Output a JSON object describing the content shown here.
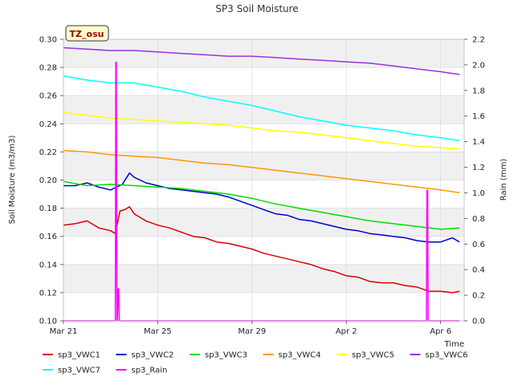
{
  "chart_data": {
    "type": "line",
    "title": "SP3 Soil Moisture",
    "xlabel": "Time",
    "ylabel": "Soil Moisture (m3/m3)",
    "y2label": "Rain (mm)",
    "badge": "TZ_osu",
    "xlim": [
      0,
      17.0
    ],
    "ylim": [
      0.1,
      0.3
    ],
    "y2lim": [
      0.0,
      2.2
    ],
    "x_ticks": [
      {
        "x": 0,
        "label": "Mar 21"
      },
      {
        "x": 4,
        "label": "Mar 25"
      },
      {
        "x": 8,
        "label": "Mar 29"
      },
      {
        "x": 12,
        "label": "Apr 2"
      },
      {
        "x": 16,
        "label": "Apr 6"
      }
    ],
    "y_ticks": [
      "0.10",
      "0.12",
      "0.14",
      "0.16",
      "0.18",
      "0.20",
      "0.22",
      "0.24",
      "0.26",
      "0.28",
      "0.30"
    ],
    "y2_ticks": [
      "0.0",
      "0.2",
      "0.4",
      "0.6",
      "0.8",
      "1.0",
      "1.2",
      "1.4",
      "1.6",
      "1.8",
      "2.0",
      "2.2"
    ],
    "grid": true,
    "legend_position": "bottom",
    "series": [
      {
        "name": "sp3_VWC1",
        "color": "#dd0000",
        "axis": "left",
        "x": [
          0,
          0.5,
          1,
          1.5,
          2,
          2.2,
          2.4,
          2.6,
          2.8,
          3,
          3.5,
          4,
          4.5,
          5,
          5.5,
          6,
          6.5,
          7,
          7.5,
          8,
          8.5,
          9,
          9.5,
          10,
          10.5,
          11,
          11.5,
          12,
          12.5,
          13,
          13.5,
          14,
          14.5,
          15,
          15.5,
          16,
          16.5,
          16.8
        ],
        "y": [
          0.168,
          0.169,
          0.171,
          0.166,
          0.164,
          0.162,
          0.178,
          0.179,
          0.181,
          0.176,
          0.171,
          0.168,
          0.166,
          0.163,
          0.16,
          0.159,
          0.156,
          0.155,
          0.153,
          0.151,
          0.148,
          0.146,
          0.144,
          0.142,
          0.14,
          0.137,
          0.135,
          0.132,
          0.131,
          0.128,
          0.127,
          0.127,
          0.125,
          0.124,
          0.121,
          0.121,
          0.12,
          0.121
        ]
      },
      {
        "name": "sp3_VWC2",
        "color": "#0000cc",
        "axis": "left",
        "x": [
          0,
          0.5,
          1,
          1.5,
          2,
          2.5,
          2.8,
          3,
          3.5,
          4,
          4.5,
          5,
          5.5,
          6,
          6.5,
          7,
          7.5,
          8,
          8.5,
          9,
          9.5,
          10,
          10.5,
          11,
          11.5,
          12,
          12.5,
          13,
          13.5,
          14,
          14.5,
          15,
          15.5,
          16,
          16.5,
          16.8
        ],
        "y": [
          0.196,
          0.196,
          0.198,
          0.195,
          0.193,
          0.197,
          0.205,
          0.202,
          0.198,
          0.196,
          0.194,
          0.193,
          0.192,
          0.191,
          0.19,
          0.188,
          0.185,
          0.182,
          0.179,
          0.176,
          0.175,
          0.172,
          0.171,
          0.169,
          0.167,
          0.165,
          0.164,
          0.162,
          0.161,
          0.16,
          0.159,
          0.157,
          0.156,
          0.156,
          0.159,
          0.156
        ]
      },
      {
        "name": "sp3_VWC3",
        "color": "#00dd00",
        "axis": "left",
        "x": [
          0,
          1,
          2,
          3,
          4,
          5,
          6,
          7,
          8,
          9,
          10,
          11,
          12,
          13,
          14,
          15,
          16,
          16.8
        ],
        "y": [
          0.199,
          0.196,
          0.197,
          0.196,
          0.195,
          0.194,
          0.192,
          0.19,
          0.187,
          0.183,
          0.18,
          0.177,
          0.174,
          0.171,
          0.169,
          0.167,
          0.165,
          0.166
        ]
      },
      {
        "name": "sp3_VWC4",
        "color": "#ff9900",
        "axis": "left",
        "x": [
          0,
          1,
          2,
          3,
          4,
          5,
          6,
          7,
          8,
          9,
          10,
          11,
          12,
          13,
          14,
          15,
          16,
          16.8
        ],
        "y": [
          0.221,
          0.22,
          0.218,
          0.217,
          0.216,
          0.214,
          0.212,
          0.211,
          0.209,
          0.207,
          0.205,
          0.203,
          0.201,
          0.199,
          0.197,
          0.195,
          0.193,
          0.191
        ]
      },
      {
        "name": "sp3_VWC5",
        "color": "#ffff00",
        "axis": "left",
        "x": [
          0,
          1,
          2,
          3,
          4,
          5,
          6,
          7,
          8,
          9,
          10,
          11,
          12,
          13,
          14,
          15,
          16,
          16.8
        ],
        "y": [
          0.248,
          0.246,
          0.244,
          0.243,
          0.242,
          0.241,
          0.24,
          0.239,
          0.237,
          0.235,
          0.234,
          0.232,
          0.23,
          0.228,
          0.226,
          0.224,
          0.223,
          0.222
        ]
      },
      {
        "name": "sp3_VWC6",
        "color": "#9933dd",
        "axis": "left",
        "x": [
          0,
          1,
          2,
          3,
          4,
          5,
          6,
          7,
          8,
          9,
          10,
          11,
          12,
          13,
          14,
          15,
          16,
          16.8
        ],
        "y": [
          0.294,
          0.293,
          0.292,
          0.292,
          0.291,
          0.29,
          0.289,
          0.288,
          0.288,
          0.287,
          0.286,
          0.285,
          0.284,
          0.283,
          0.281,
          0.279,
          0.277,
          0.275
        ]
      },
      {
        "name": "sp3_VWC7",
        "color": "#00ffff",
        "axis": "left",
        "x": [
          0,
          1,
          2,
          3,
          4,
          5,
          6,
          7,
          8,
          9,
          10,
          11,
          12,
          13,
          14,
          15,
          16,
          16.8
        ],
        "y": [
          0.274,
          0.271,
          0.269,
          0.269,
          0.266,
          0.263,
          0.259,
          0.256,
          0.253,
          0.249,
          0.245,
          0.242,
          0.239,
          0.237,
          0.235,
          0.232,
          0.23,
          0.228
        ]
      },
      {
        "name": "sp3_Rain",
        "color": "#ff00ff",
        "axis": "right",
        "x": [
          0,
          2.2,
          2.22,
          2.24,
          2.27,
          2.29,
          2.32,
          2.34,
          2.37,
          2.39,
          15.4,
          15.42,
          15.45,
          15.47,
          16.8
        ],
        "y": [
          0,
          0,
          2.02,
          2.02,
          0,
          0,
          0.25,
          0.25,
          0,
          0,
          0,
          1.02,
          1.02,
          0,
          0
        ]
      }
    ]
  }
}
